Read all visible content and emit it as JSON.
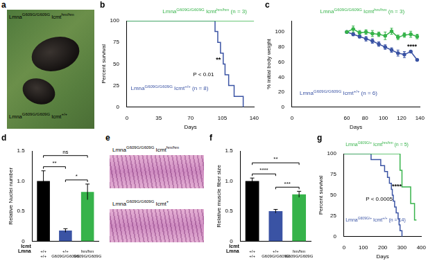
{
  "image_panels": [
    {
      "panel": "a",
      "labels": [
        [
          {
            "t": "Lmna"
          },
          {
            "sup": "G609G/G609G"
          },
          {
            "t": " Icmt"
          },
          {
            "sup": "hm/hm"
          }
        ],
        [
          {
            "t": "Lmna"
          },
          {
            "sup": "G609G/G609G"
          },
          {
            "t": " Icmt"
          },
          {
            "sup": "+/+"
          }
        ]
      ]
    },
    {
      "panel": "e",
      "labels": [
        [
          {
            "t": "Lmna"
          },
          {
            "sup": "G609G/G609G"
          },
          {
            "t": " Icmt"
          },
          {
            "sup": "hm/hm"
          }
        ],
        [
          {
            "t": "Lmna"
          },
          {
            "sup": "G609G/G609G"
          },
          {
            "t": " Icmt"
          },
          {
            "sup": "+"
          }
        ]
      ]
    }
  ],
  "chart_data": [
    {
      "panel": "b",
      "type": "line",
      "x_label": "Days",
      "y_label": "Percent survival",
      "xlim": [
        0,
        140
      ],
      "xticks": [
        0,
        35,
        70,
        105,
        140
      ],
      "ylim": [
        0,
        100
      ],
      "yticks": [
        0,
        25,
        50,
        75,
        100
      ],
      "grid": false,
      "annotations": [
        "P < 0.01",
        "**"
      ],
      "series": [
        {
          "name": [
            {
              "t": "Lmna"
            },
            {
              "sup": "G609G/G609G"
            },
            {
              "t": " Icmt"
            },
            {
              "sup": "hm/hm"
            },
            {
              "t": " (n = 3)"
            }
          ],
          "color": "#36b34a",
          "line_style": "step",
          "marker": "none",
          "x": [
            0,
            140
          ],
          "values": [
            100,
            100
          ]
        },
        {
          "name": [
            {
              "t": "Lmna"
            },
            {
              "sup": "G609G/G609G"
            },
            {
              "t": " Icmt"
            },
            {
              "sup": "+/+"
            },
            {
              "t": " (n = 8)"
            }
          ],
          "color": "#3a53a4",
          "line_style": "step",
          "marker": "none",
          "x": [
            0,
            97,
            100,
            103,
            106,
            108,
            112,
            118,
            128
          ],
          "values": [
            100,
            87.5,
            75,
            62.5,
            50,
            37.5,
            25,
            12.5,
            0
          ]
        }
      ]
    },
    {
      "panel": "c",
      "type": "line",
      "x_label": "Days",
      "y_label": "% initial body weight",
      "xlim": [
        0,
        140
      ],
      "xticks": [
        0,
        60,
        80,
        100,
        120,
        140
      ],
      "ylim": [
        0,
        115
      ],
      "yticks": [
        0,
        20,
        40,
        60,
        80,
        100
      ],
      "grid": false,
      "annotations": [
        "****"
      ],
      "series": [
        {
          "name": [
            {
              "t": "Lmna"
            },
            {
              "sup": "G609G/G609G"
            },
            {
              "t": " Icmt"
            },
            {
              "sup": "hm/hm"
            },
            {
              "t": " (n = 3)"
            }
          ],
          "color": "#36b34a",
          "line_style": "solid",
          "marker": "circle",
          "x": [
            60,
            67,
            74,
            81,
            88,
            95,
            102,
            109,
            116,
            123,
            130,
            137
          ],
          "values": [
            100,
            104,
            99,
            100,
            98,
            97,
            95,
            101,
            93,
            96,
            97,
            94
          ],
          "errors": [
            0,
            4,
            3,
            3,
            4,
            3,
            5,
            4,
            3,
            3,
            4,
            3
          ]
        },
        {
          "name": [
            {
              "t": "Lmna"
            },
            {
              "sup": "G609G/G609G"
            },
            {
              "t": " Icmt"
            },
            {
              "sup": "+/+"
            },
            {
              "t": " (n = 6)"
            }
          ],
          "color": "#3a53a4",
          "line_style": "solid",
          "marker": "circle",
          "x": [
            60,
            67,
            74,
            81,
            88,
            95,
            102,
            109,
            116,
            123,
            130,
            137
          ],
          "values": [
            100,
            97,
            94,
            91,
            88,
            84,
            80,
            76,
            72,
            70,
            74,
            63
          ],
          "errors": [
            0,
            2,
            2,
            3,
            3,
            3,
            3,
            3,
            4,
            4,
            0,
            0
          ]
        }
      ]
    },
    {
      "panel": "d",
      "type": "bar",
      "y_label": "Relative Nuclei number",
      "categories": [
        [
          "+/+",
          "+/+"
        ],
        [
          "+/+",
          "G609G/G609G"
        ],
        [
          "hm/hm",
          "G609G/G609G"
        ]
      ],
      "row_labels": [
        "Icmt",
        "Lmna"
      ],
      "values": [
        1.0,
        0.18,
        0.82
      ],
      "errors": [
        0.17,
        0.03,
        0.13
      ],
      "colors": [
        "#000000",
        "#3a53a4",
        "#36b34a"
      ],
      "ylim": [
        0,
        1.5
      ],
      "yticks": [
        0,
        0.5,
        {
          "value": 1,
          "label": "1.0"
        },
        1.5
      ],
      "grid": false,
      "brackets": [
        {
          "from": 0,
          "to": 1,
          "label": "**"
        },
        {
          "from": 0,
          "to": 2,
          "label": "ns"
        },
        {
          "from": 1,
          "to": 2,
          "label": "*"
        }
      ]
    },
    {
      "panel": "f",
      "type": "bar",
      "y_label": "Relative muscle fiber size",
      "categories": [
        [
          "+/+",
          "+/+"
        ],
        [
          "+/+",
          "G609G/G609G"
        ],
        [
          "hm/hm",
          "G609G/G609G"
        ]
      ],
      "row_labels": [
        "Icmt",
        "Lmna"
      ],
      "values": [
        1.0,
        0.5,
        0.78
      ],
      "errors": [
        0.05,
        0.03,
        0.05
      ],
      "colors": [
        "#000000",
        "#3a53a4",
        "#36b34a"
      ],
      "ylim": [
        0,
        1.5
      ],
      "yticks": [
        0,
        0.5,
        {
          "value": 1,
          "label": "1.0"
        },
        1.5
      ],
      "grid": false,
      "brackets": [
        {
          "from": 0,
          "to": 1,
          "label": "****"
        },
        {
          "from": 0,
          "to": 2,
          "label": "**"
        },
        {
          "from": 1,
          "to": 2,
          "label": "***"
        }
      ]
    },
    {
      "panel": "g",
      "type": "line",
      "x_label": "Days",
      "y_label": "Percent survival",
      "xlim": [
        0,
        400
      ],
      "xticks": [
        0,
        100,
        200,
        300,
        400
      ],
      "ylim": [
        0,
        100
      ],
      "yticks": [
        0,
        25,
        50,
        75,
        100
      ],
      "grid": false,
      "annotations": [
        "P < 0.0005",
        "****"
      ],
      "series": [
        {
          "name": [
            {
              "t": "Lmna"
            },
            {
              "sup": "G609G/+"
            },
            {
              "t": " Icmt"
            },
            {
              "sup": "hm/hm"
            },
            {
              "t": " (n = 5)"
            }
          ],
          "color": "#36b34a",
          "line_style": "step",
          "marker": "none",
          "x": [
            0,
            290,
            300,
            345,
            365,
            375
          ],
          "values": [
            100,
            80,
            60,
            40,
            20,
            20
          ]
        },
        {
          "name": [
            {
              "t": "Lmna"
            },
            {
              "sup": "G609G/+"
            },
            {
              "t": " Icmt"
            },
            {
              "sup": "+/+"
            },
            {
              "t": " (n = 14)"
            }
          ],
          "color": "#3a53a4",
          "line_style": "step",
          "marker": "none",
          "x": [
            0,
            140,
            190,
            210,
            225,
            235,
            245,
            250,
            255,
            262,
            270,
            280,
            285,
            290,
            300
          ],
          "values": [
            100,
            92.9,
            85.7,
            78.6,
            71.4,
            64.3,
            57.1,
            50,
            42.9,
            35.7,
            28.6,
            21.4,
            14.3,
            7.1,
            0
          ]
        }
      ]
    }
  ]
}
